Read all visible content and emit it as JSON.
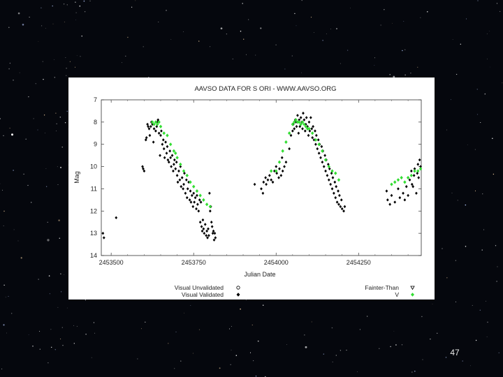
{
  "slide": {
    "number": "47"
  },
  "chart_data": {
    "type": "scatter",
    "title": "AAVSO DATA FOR S ORI - WWW.AAVSO.ORG",
    "xlabel": "Julian Date",
    "ylabel": "Mag",
    "xlim": [
      2453470,
      2454440
    ],
    "ylim": [
      14,
      7
    ],
    "y_inverted": true,
    "x_ticks": [
      "2453500",
      "2453750",
      "2454000",
      "2454250"
    ],
    "x_tick_values": [
      2453500,
      2453750,
      2454000,
      2454250
    ],
    "y_ticks": [
      "7",
      "8",
      "9",
      "10",
      "11",
      "12",
      "13",
      "14"
    ],
    "y_tick_values": [
      7,
      8,
      9,
      10,
      11,
      12,
      13,
      14
    ],
    "grid": false,
    "legend": [
      {
        "label": "Visual Unvalidated",
        "symbol": "open-circle",
        "color": "#000000",
        "position": "bottom-left"
      },
      {
        "label": "Visual Validated",
        "symbol": "filled-diamond",
        "color": "#000000",
        "position": "bottom-left"
      },
      {
        "label": "Fainter-Than",
        "symbol": "open-triangle-down",
        "color": "#000000",
        "position": "bottom-right"
      },
      {
        "label": "V",
        "symbol": "filled-diamond",
        "color": "#33dd33",
        "position": "bottom-right"
      }
    ],
    "series": [
      {
        "name": "Visual Validated",
        "color": "#000000",
        "marker": "diamond",
        "points": [
          [
            2453475,
            13.0
          ],
          [
            2453478,
            13.2
          ],
          [
            2453515,
            12.3
          ],
          [
            2453595,
            10.0
          ],
          [
            2453597,
            10.1
          ],
          [
            2453600,
            10.2
          ],
          [
            2453605,
            8.8
          ],
          [
            2453607,
            8.7
          ],
          [
            2453610,
            8.1
          ],
          [
            2453612,
            8.2
          ],
          [
            2453615,
            8.3
          ],
          [
            2453617,
            8.6
          ],
          [
            2453620,
            8.2
          ],
          [
            2453622,
            8.0
          ],
          [
            2453625,
            8.1
          ],
          [
            2453628,
            8.9
          ],
          [
            2453630,
            8.3
          ],
          [
            2453635,
            8.4
          ],
          [
            2453638,
            8.2
          ],
          [
            2453640,
            8.0
          ],
          [
            2453642,
            7.9
          ],
          [
            2453645,
            8.5
          ],
          [
            2453648,
            9.5
          ],
          [
            2453650,
            8.6
          ],
          [
            2453652,
            8.4
          ],
          [
            2453655,
            9.0
          ],
          [
            2453658,
            8.8
          ],
          [
            2453660,
            9.2
          ],
          [
            2453662,
            9.6
          ],
          [
            2453665,
            8.9
          ],
          [
            2453668,
            9.4
          ],
          [
            2453670,
            9.1
          ],
          [
            2453672,
            9.7
          ],
          [
            2453675,
            9.8
          ],
          [
            2453678,
            9.3
          ],
          [
            2453680,
            9.6
          ],
          [
            2453682,
            10.0
          ],
          [
            2453685,
            9.5
          ],
          [
            2453688,
            10.2
          ],
          [
            2453690,
            9.9
          ],
          [
            2453692,
            9.7
          ],
          [
            2453695,
            10.1
          ],
          [
            2453698,
            9.8
          ],
          [
            2453700,
            10.4
          ],
          [
            2453702,
            10.7
          ],
          [
            2453705,
            10.2
          ],
          [
            2453708,
            10.6
          ],
          [
            2453710,
            10.0
          ],
          [
            2453712,
            10.9
          ],
          [
            2453715,
            10.5
          ],
          [
            2453718,
            11.0
          ],
          [
            2453720,
            10.8
          ],
          [
            2453722,
            10.3
          ],
          [
            2453725,
            11.2
          ],
          [
            2453728,
            10.6
          ],
          [
            2453730,
            11.4
          ],
          [
            2453732,
            11.0
          ],
          [
            2453735,
            10.7
          ],
          [
            2453738,
            11.5
          ],
          [
            2453740,
            11.1
          ],
          [
            2453742,
            11.6
          ],
          [
            2453745,
            11.3
          ],
          [
            2453748,
            11.8
          ],
          [
            2453750,
            11.2
          ],
          [
            2453752,
            11.6
          ],
          [
            2453755,
            11.4
          ],
          [
            2453758,
            11.9
          ],
          [
            2453760,
            11.3
          ],
          [
            2453762,
            11.7
          ],
          [
            2453765,
            12.0
          ],
          [
            2453768,
            11.5
          ],
          [
            2453770,
            12.5
          ],
          [
            2453772,
            11.6
          ],
          [
            2453774,
            12.7
          ],
          [
            2453776,
            12.9
          ],
          [
            2453778,
            12.4
          ],
          [
            2453780,
            12.8
          ],
          [
            2453782,
            13.0
          ],
          [
            2453785,
            12.6
          ],
          [
            2453788,
            13.1
          ],
          [
            2453790,
            12.9
          ],
          [
            2453792,
            13.2
          ],
          [
            2453794,
            12.8
          ],
          [
            2453796,
            13.1
          ],
          [
            2453798,
            11.2
          ],
          [
            2453800,
            12.0
          ],
          [
            2453802,
            11.8
          ],
          [
            2453804,
            12.5
          ],
          [
            2453806,
            12.7
          ],
          [
            2453808,
            13.0
          ],
          [
            2453810,
            12.9
          ],
          [
            2453812,
            13.3
          ],
          [
            2453814,
            13.0
          ],
          [
            2453816,
            13.2
          ],
          [
            2453935,
            10.8
          ],
          [
            2453955,
            11.0
          ],
          [
            2453960,
            11.2
          ],
          [
            2453962,
            10.7
          ],
          [
            2453968,
            10.5
          ],
          [
            2453970,
            10.8
          ],
          [
            2453975,
            10.6
          ],
          [
            2453980,
            10.4
          ],
          [
            2453985,
            10.6
          ],
          [
            2453990,
            10.7
          ],
          [
            2453995,
            10.2
          ],
          [
            2454000,
            10.0
          ],
          [
            2454002,
            10.3
          ],
          [
            2454008,
            10.5
          ],
          [
            2454010,
            10.1
          ],
          [
            2454015,
            10.4
          ],
          [
            2454018,
            9.6
          ],
          [
            2454020,
            10.2
          ],
          [
            2454025,
            10.0
          ],
          [
            2454030,
            9.8
          ],
          [
            2454040,
            9.2
          ],
          [
            2454045,
            8.6
          ],
          [
            2454050,
            8.4
          ],
          [
            2454052,
            8.1
          ],
          [
            2454055,
            8.3
          ],
          [
            2454058,
            7.9
          ],
          [
            2454060,
            8.0
          ],
          [
            2454062,
            8.2
          ],
          [
            2454065,
            7.7
          ],
          [
            2454068,
            8.5
          ],
          [
            2454070,
            7.9
          ],
          [
            2454072,
            8.2
          ],
          [
            2454075,
            7.8
          ],
          [
            2454078,
            8.0
          ],
          [
            2454080,
            8.3
          ],
          [
            2454082,
            7.6
          ],
          [
            2454085,
            7.9
          ],
          [
            2454088,
            8.4
          ],
          [
            2454090,
            8.1
          ],
          [
            2454092,
            7.8
          ],
          [
            2454095,
            8.2
          ],
          [
            2454098,
            8.6
          ],
          [
            2454100,
            8.0
          ],
          [
            2454102,
            8.4
          ],
          [
            2454105,
            7.8
          ],
          [
            2454108,
            8.3
          ],
          [
            2454110,
            8.7
          ],
          [
            2454112,
            8.2
          ],
          [
            2454115,
            8.8
          ],
          [
            2454118,
            8.4
          ],
          [
            2454120,
            9.0
          ],
          [
            2454122,
            8.6
          ],
          [
            2454125,
            9.2
          ],
          [
            2454128,
            8.8
          ],
          [
            2454130,
            9.4
          ],
          [
            2454132,
            9.0
          ],
          [
            2454135,
            9.6
          ],
          [
            2454138,
            9.1
          ],
          [
            2454140,
            9.8
          ],
          [
            2454142,
            9.3
          ],
          [
            2454145,
            10.0
          ],
          [
            2454148,
            9.5
          ],
          [
            2454150,
            10.2
          ],
          [
            2454152,
            9.7
          ],
          [
            2454155,
            10.4
          ],
          [
            2454158,
            9.9
          ],
          [
            2454160,
            10.6
          ],
          [
            2454162,
            10.1
          ],
          [
            2454165,
            10.8
          ],
          [
            2454168,
            10.3
          ],
          [
            2454170,
            11.0
          ],
          [
            2454172,
            10.5
          ],
          [
            2454175,
            11.2
          ],
          [
            2454178,
            10.7
          ],
          [
            2454180,
            11.4
          ],
          [
            2454182,
            10.9
          ],
          [
            2454185,
            11.6
          ],
          [
            2454188,
            11.1
          ],
          [
            2454190,
            11.7
          ],
          [
            2454192,
            11.3
          ],
          [
            2454195,
            11.8
          ],
          [
            2454198,
            11.5
          ],
          [
            2454200,
            11.9
          ],
          [
            2454205,
            12.0
          ],
          [
            2454208,
            11.8
          ],
          [
            2454335,
            11.1
          ],
          [
            2454338,
            11.5
          ],
          [
            2454345,
            11.7
          ],
          [
            2454350,
            11.3
          ],
          [
            2454360,
            11.6
          ],
          [
            2454370,
            11.0
          ],
          [
            2454375,
            11.4
          ],
          [
            2454385,
            11.2
          ],
          [
            2454390,
            11.5
          ],
          [
            2454395,
            10.9
          ],
          [
            2454400,
            11.3
          ],
          [
            2454405,
            10.6
          ],
          [
            2454410,
            10.2
          ],
          [
            2454412,
            10.8
          ],
          [
            2454415,
            10.9
          ],
          [
            2454418,
            10.4
          ],
          [
            2454420,
            10.1
          ],
          [
            2454425,
            11.2
          ],
          [
            2454428,
            10.3
          ],
          [
            2454430,
            9.9
          ],
          [
            2454432,
            10.5
          ],
          [
            2454435,
            9.7
          ],
          [
            2454438,
            10.0
          ]
        ]
      },
      {
        "name": "V",
        "color": "#33dd33",
        "marker": "diamond",
        "points": [
          [
            2453625,
            8.0
          ],
          [
            2453630,
            8.1
          ],
          [
            2453635,
            8.0
          ],
          [
            2453640,
            8.1
          ],
          [
            2453645,
            8.0
          ],
          [
            2453650,
            8.2
          ],
          [
            2453660,
            8.5
          ],
          [
            2453670,
            8.6
          ],
          [
            2453680,
            9.0
          ],
          [
            2453690,
            9.3
          ],
          [
            2453695,
            9.4
          ],
          [
            2453700,
            9.6
          ],
          [
            2453710,
            9.9
          ],
          [
            2453720,
            10.2
          ],
          [
            2453730,
            10.4
          ],
          [
            2453740,
            10.7
          ],
          [
            2453750,
            10.9
          ],
          [
            2453760,
            11.1
          ],
          [
            2453770,
            11.3
          ],
          [
            2453780,
            11.5
          ],
          [
            2453790,
            11.7
          ],
          [
            2453800,
            11.8
          ],
          [
            2453985,
            10.2
          ],
          [
            2454000,
            10.2
          ],
          [
            2454010,
            9.8
          ],
          [
            2454020,
            9.3
          ],
          [
            2454030,
            8.9
          ],
          [
            2454040,
            8.5
          ],
          [
            2454050,
            8.1
          ],
          [
            2454055,
            8.0
          ],
          [
            2454060,
            7.9
          ],
          [
            2454065,
            8.0
          ],
          [
            2454070,
            8.0
          ],
          [
            2454075,
            8.1
          ],
          [
            2454080,
            8.0
          ],
          [
            2454085,
            8.1
          ],
          [
            2454090,
            8.2
          ],
          [
            2454095,
            8.3
          ],
          [
            2454100,
            8.3
          ],
          [
            2454110,
            8.5
          ],
          [
            2454120,
            8.8
          ],
          [
            2454130,
            9.0
          ],
          [
            2454140,
            9.3
          ],
          [
            2454150,
            9.7
          ],
          [
            2454160,
            10.0
          ],
          [
            2454170,
            10.2
          ],
          [
            2454180,
            10.3
          ],
          [
            2454190,
            10.6
          ],
          [
            2454350,
            10.8
          ],
          [
            2454360,
            10.7
          ],
          [
            2454370,
            10.6
          ],
          [
            2454380,
            10.5
          ],
          [
            2454390,
            10.7
          ],
          [
            2454400,
            10.5
          ],
          [
            2454410,
            10.4
          ],
          [
            2454420,
            10.2
          ],
          [
            2454430,
            10.2
          ],
          [
            2454438,
            10.1
          ]
        ]
      }
    ]
  }
}
